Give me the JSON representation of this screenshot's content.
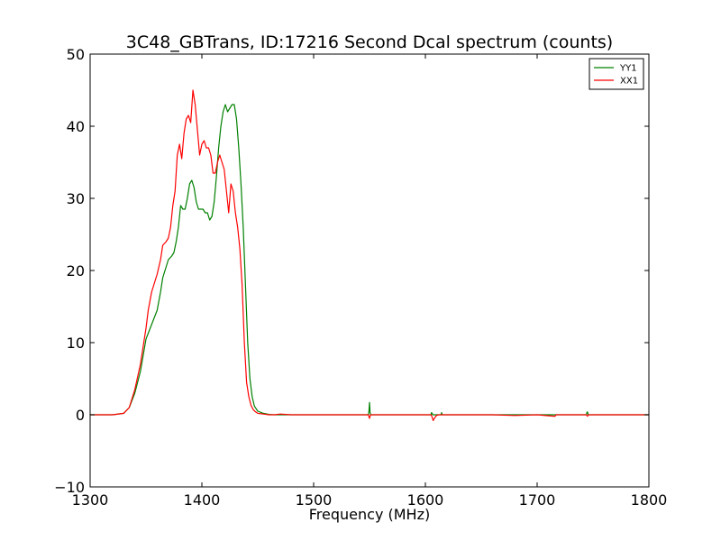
{
  "chart_data": {
    "type": "line",
    "title": "3C48_GBTrans, ID:17216 Second Dcal spectrum (counts)",
    "xlabel": "Frequency (MHz)",
    "ylabel": "",
    "xlim": [
      1300,
      1800
    ],
    "ylim": [
      -10,
      50
    ],
    "xticks": [
      1300,
      1400,
      1500,
      1600,
      1700,
      1800
    ],
    "yticks": [
      -10,
      0,
      10,
      20,
      30,
      40,
      50
    ],
    "xtick_labels": [
      "1300",
      "1400",
      "1500",
      "1600",
      "1700",
      "1800"
    ],
    "ytick_labels": [
      "−10",
      "0",
      "10",
      "20",
      "30",
      "40",
      "50"
    ],
    "grid": false,
    "legend_position": "top-right",
    "series": [
      {
        "name": "YY1",
        "color": "#008000",
        "x": [
          1300,
          1320,
          1330,
          1335,
          1340,
          1345,
          1350,
          1355,
          1360,
          1363,
          1365,
          1368,
          1370,
          1373,
          1375,
          1377,
          1379,
          1381,
          1383,
          1385,
          1387,
          1389,
          1391,
          1393,
          1395,
          1397,
          1399,
          1401,
          1403,
          1405,
          1407,
          1409,
          1411,
          1413,
          1415,
          1417,
          1419,
          1421,
          1423,
          1425,
          1427,
          1429,
          1431,
          1433,
          1435,
          1437,
          1439,
          1441,
          1443,
          1445,
          1447,
          1450,
          1455,
          1460,
          1465,
          1470,
          1480,
          1500,
          1520,
          1540,
          1549,
          1549.5,
          1550,
          1550.5,
          1551,
          1560,
          1580,
          1600,
          1605,
          1605.5,
          1606,
          1606.5,
          1607,
          1610,
          1614,
          1614.5,
          1615,
          1615.5,
          1616,
          1620,
          1640,
          1660,
          1680,
          1700,
          1720,
          1744,
          1744.5,
          1745,
          1745.5,
          1746,
          1760,
          1780,
          1800
        ],
        "y": [
          0,
          0,
          0.2,
          1,
          3,
          6,
          10.5,
          12.5,
          14.5,
          17,
          19,
          20.5,
          21.5,
          22,
          22.5,
          24,
          26,
          29,
          28.5,
          28.5,
          30,
          32,
          32.5,
          31.5,
          29.5,
          28.5,
          28.5,
          28.5,
          28,
          28,
          27,
          27.5,
          29.5,
          33,
          37,
          40,
          42,
          43,
          42,
          42.5,
          43,
          43,
          41,
          37,
          32,
          26,
          18,
          10,
          5,
          2.5,
          1.2,
          0.5,
          0.2,
          0.05,
          0,
          0,
          0,
          0,
          0,
          0,
          0,
          0.5,
          1.7,
          0.3,
          0,
          0,
          0,
          0,
          0,
          0.3,
          0.2,
          0,
          0,
          0,
          0,
          0.3,
          0,
          0,
          0,
          0,
          0,
          0,
          0,
          0,
          0,
          0,
          0.3,
          0.4,
          0.1,
          0,
          0,
          0,
          0
        ]
      },
      {
        "name": "XX1",
        "color": "#ff0000",
        "x": [
          1300,
          1320,
          1330,
          1335,
          1340,
          1345,
          1350,
          1352,
          1355,
          1358,
          1360,
          1363,
          1365,
          1368,
          1370,
          1372,
          1374,
          1376,
          1378,
          1380,
          1382,
          1384,
          1386,
          1388,
          1390,
          1392,
          1394,
          1396,
          1398,
          1400,
          1402,
          1404,
          1406,
          1408,
          1410,
          1412,
          1414,
          1416,
          1418,
          1420,
          1422,
          1424,
          1426,
          1428,
          1430,
          1432,
          1434,
          1436,
          1438,
          1440,
          1442,
          1444,
          1446,
          1448,
          1450,
          1455,
          1460,
          1465,
          1470,
          1480,
          1500,
          1520,
          1540,
          1549,
          1549.5,
          1550,
          1550.5,
          1551,
          1560,
          1580,
          1600,
          1605,
          1606,
          1607,
          1608,
          1609,
          1610,
          1612,
          1616,
          1620,
          1640,
          1660,
          1680,
          1700,
          1715,
          1716,
          1717,
          1730,
          1744,
          1745,
          1746,
          1760,
          1780,
          1800
        ],
        "y": [
          0,
          0,
          0.2,
          1,
          3.5,
          7,
          12,
          14.5,
          17,
          18.5,
          19.5,
          21.5,
          23.5,
          24,
          24.5,
          26,
          29,
          31,
          36,
          37.5,
          35.5,
          39,
          41,
          41.5,
          40.5,
          45,
          43,
          39.5,
          36,
          37.5,
          38,
          37,
          37,
          36,
          33.5,
          33.5,
          35,
          36,
          35,
          34,
          31,
          28,
          32,
          31,
          28,
          26,
          23,
          18,
          10,
          4.5,
          2.5,
          1.3,
          0.7,
          0.4,
          0.2,
          0.1,
          0,
          0,
          0.1,
          0,
          0,
          0,
          0,
          0,
          -0.3,
          -0.5,
          -0.2,
          0,
          0,
          0,
          0,
          0,
          -0.3,
          -0.8,
          -0.5,
          -0.3,
          -0.1,
          0,
          0,
          0,
          0,
          0,
          -0.1,
          0,
          -0.2,
          -0.2,
          0,
          0,
          0,
          -0.2,
          0,
          0,
          0,
          0
        ]
      }
    ]
  }
}
